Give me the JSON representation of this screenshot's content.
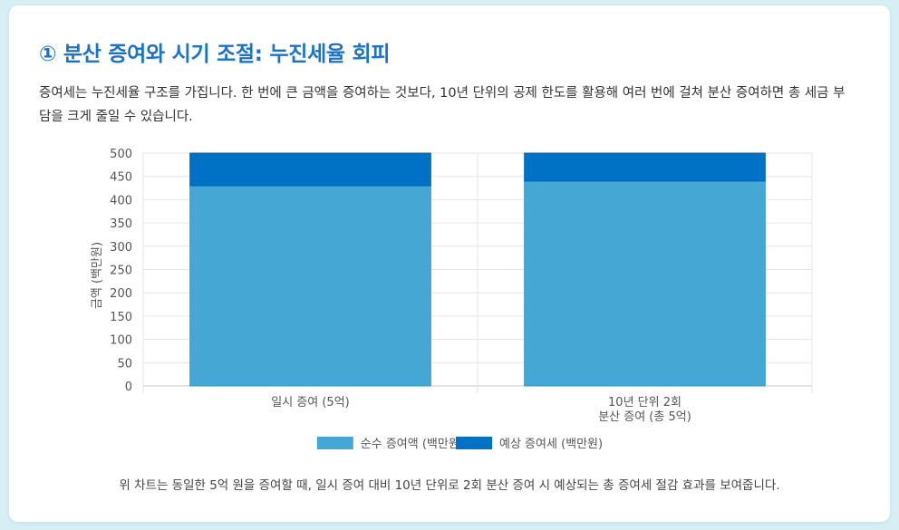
{
  "section": {
    "title": "① 분산 증여와 시기 조절: 누진세율 회피",
    "intro": "증여세는 누진세율 구조를 가집니다. 한 번에 큰 금액을 증여하는 것보다, 10년 단위의 공제 한도를 활용해 여러 번에 걸쳐 분산 증여하면 총 세금 부담을 크게 줄일 수 있습니다.",
    "caption": "위 차트는 동일한 5억 원을 증여할 때, 일시 증여 대비 10년 단위로 2회 분산 증여 시 예상되는 총 증여세 절감 효과를 보여줍니다."
  },
  "chart_data": {
    "type": "bar",
    "stacked": true,
    "categories": [
      [
        "일시 증여 (5억)"
      ],
      [
        "10년 단위 2회",
        "분산 증여 (총 5억)"
      ]
    ],
    "series": [
      {
        "name": "순수 증여액 (백만원)",
        "values": [
          430,
          440
        ],
        "color": "#45a8d4"
      },
      {
        "name": "예상 증여세 (백만원)",
        "values": [
          70,
          60
        ],
        "color": "#0072c6"
      }
    ],
    "ylabel": "금액 (백만원)",
    "ylim": [
      0,
      500
    ],
    "yticks": [
      0,
      50,
      100,
      150,
      200,
      250,
      300,
      350,
      400,
      450,
      500
    ],
    "grid": true,
    "legend": "bottom"
  }
}
